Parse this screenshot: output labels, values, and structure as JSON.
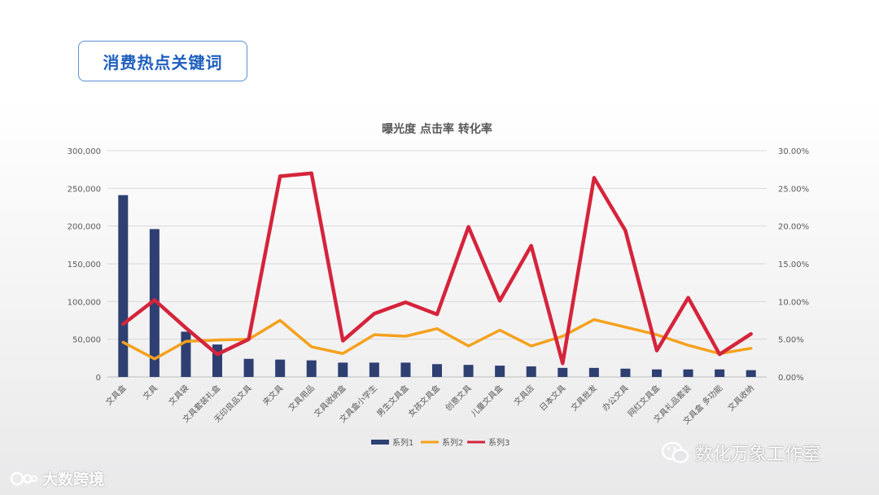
{
  "header": {
    "title": "消费热点关键词"
  },
  "watermark": {
    "left": "大数跨境",
    "right": "数化万象工作室"
  },
  "colors": {
    "series1": "#2e3f72",
    "series2": "#f5a11d",
    "series3": "#d5243b"
  },
  "chart_data": {
    "type": "bar+line",
    "title": "曝光度 点击率 转化率",
    "categories": [
      "文具盒",
      "文具",
      "文具袋",
      "文具套装礼盒",
      "无印良品文具",
      "夹文具",
      "文具用品",
      "文具收纳盒",
      "文具盒小学生",
      "男生文具盒",
      "女孩文具盒",
      "创意文具",
      "儿童文具盒",
      "文具店",
      "日本文具",
      "文具批发",
      "办公文具",
      "网红文具盒",
      "文具礼品套装",
      "文具盒 多功能",
      "文具收纳"
    ],
    "y_left": {
      "min": 0,
      "max": 300000,
      "ticks": [
        "0",
        "50,000",
        "100,000",
        "150,000",
        "200,000",
        "250,000",
        "300,000"
      ]
    },
    "y_right": {
      "min": 0,
      "max": 0.3,
      "ticks": [
        "0.00%",
        "5.00%",
        "10.00%",
        "15.00%",
        "20.00%",
        "25.00%",
        "30.00%"
      ]
    },
    "series": [
      {
        "name": "系列1",
        "kind": "bar",
        "axis": "left",
        "values": [
          241000,
          196000,
          60000,
          43000,
          24000,
          23000,
          22000,
          19000,
          19000,
          19000,
          17000,
          16000,
          15000,
          14000,
          12000,
          12000,
          11000,
          10000,
          10000,
          10000,
          9000
        ]
      },
      {
        "name": "系列2",
        "kind": "line",
        "axis": "right",
        "values": [
          0.046,
          0.024,
          0.047,
          0.049,
          0.05,
          0.075,
          0.04,
          0.031,
          0.056,
          0.054,
          0.064,
          0.041,
          0.062,
          0.041,
          0.054,
          0.076,
          0.066,
          0.056,
          0.042,
          0.031,
          0.038
        ]
      },
      {
        "name": "系列3",
        "kind": "line",
        "axis": "right",
        "values": [
          0.07,
          0.102,
          0.065,
          0.03,
          0.05,
          0.266,
          0.27,
          0.048,
          0.084,
          0.099,
          0.083,
          0.199,
          0.101,
          0.174,
          0.018,
          0.264,
          0.194,
          0.035,
          0.105,
          0.03,
          0.057
        ]
      }
    ],
    "legend_position": "bottom",
    "grid": true
  }
}
